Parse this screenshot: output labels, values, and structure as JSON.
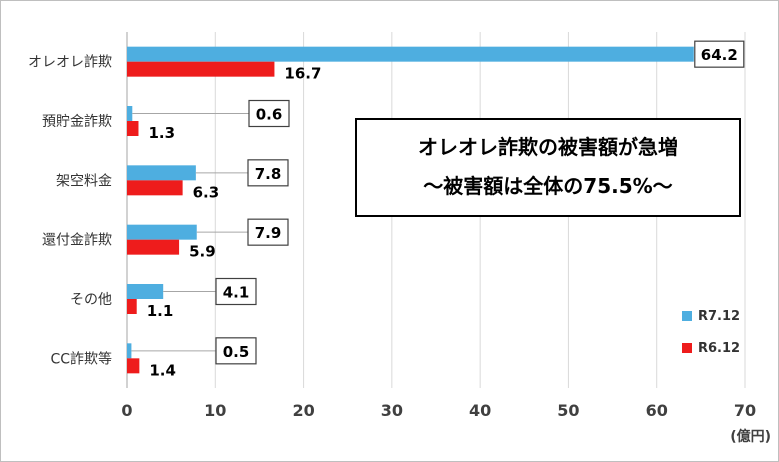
{
  "chart_data": {
    "type": "bar",
    "orientation": "horizontal",
    "categories": [
      "オレオレ詐欺",
      "預貯金詐欺",
      "架空料金",
      "還付金詐欺",
      "その他",
      "CC詐欺等"
    ],
    "series": [
      {
        "name": "R7.12",
        "color": "#4eaee0",
        "values": [
          64.2,
          0.6,
          7.8,
          7.9,
          4.1,
          0.5
        ],
        "labels": [
          "64.2",
          "0.6",
          "7.8",
          "7.9",
          "4.1",
          "0.5"
        ]
      },
      {
        "name": "R6.12",
        "color": "#ee1c1c",
        "values": [
          16.7,
          1.3,
          6.3,
          5.9,
          1.1,
          1.4
        ],
        "labels": [
          "16.7",
          "1.3",
          "6.3",
          "5.9",
          "1.1",
          "1.4"
        ]
      }
    ],
    "xlim": [
      0,
      70
    ],
    "xticks": [
      "0",
      "10",
      "20",
      "30",
      "40",
      "50",
      "60",
      "70"
    ],
    "xunit": "(億円)",
    "grid": "vertical",
    "legend_position": "right",
    "annotation": {
      "line1": "オレオレ詐欺の被害額が急増",
      "line2": "〜被害額は全体の75.5%〜"
    }
  }
}
